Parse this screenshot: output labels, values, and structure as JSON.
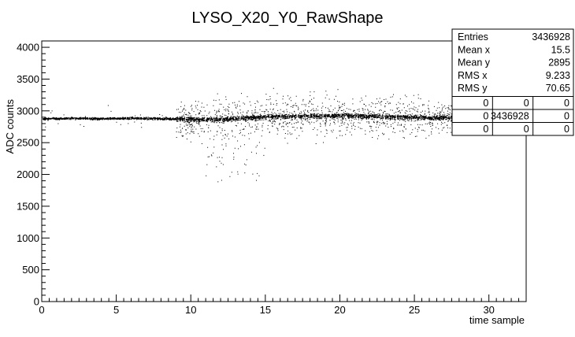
{
  "chart_data": {
    "type": "scatter",
    "title": "LYSO_X20_Y0_RawShape",
    "xlabel": "time sample",
    "ylabel": "ADC counts",
    "xlim": [
      0,
      32.5
    ],
    "ylim": [
      0,
      4100
    ],
    "x_ticks": [
      0,
      5,
      10,
      15,
      20,
      25,
      30
    ],
    "x_tick_labels": [
      "0",
      "5",
      "10",
      "15",
      "20",
      "25",
      "30"
    ],
    "y_ticks": [
      0,
      500,
      1000,
      1500,
      2000,
      2500,
      3000,
      3500,
      4000
    ],
    "y_tick_labels": [
      "0",
      "500",
      "1000",
      "1500",
      "2000",
      "2500",
      "3000",
      "3500",
      "4000"
    ],
    "grid": false,
    "legend": "none",
    "baseline": 2895,
    "series": [
      {
        "description_points": [
          {
            "x": 0,
            "y": 2880
          },
          {
            "x": 2,
            "y": 2890
          },
          {
            "x": 4,
            "y": 2885
          },
          {
            "x": 6,
            "y": 2890
          },
          {
            "x": 8,
            "y": 2885
          },
          {
            "x": 9,
            "y": 2880
          },
          {
            "x": 10,
            "y": 2870
          },
          {
            "x": 12,
            "y": 2870
          },
          {
            "x": 14,
            "y": 2900
          },
          {
            "x": 16,
            "y": 2920
          },
          {
            "x": 18,
            "y": 2920
          },
          {
            "x": 20,
            "y": 2930
          },
          {
            "x": 22,
            "y": 2920
          },
          {
            "x": 24,
            "y": 2910
          },
          {
            "x": 26,
            "y": 2900
          },
          {
            "x": 28,
            "y": 2900
          },
          {
            "x": 30,
            "y": 2900
          },
          {
            "x": 31,
            "y": 2900
          }
        ]
      }
    ],
    "stats_box": {
      "rows": [
        {
          "label": "Entries",
          "value": "3436928"
        },
        {
          "label": "Mean x",
          "value": "15.5"
        },
        {
          "label": "Mean y",
          "value": "2895"
        },
        {
          "label": "RMS x",
          "value": "9.233"
        },
        {
          "label": "RMS y",
          "value": "70.65"
        }
      ],
      "grid": [
        [
          "0",
          "0",
          "0"
        ],
        [
          "0",
          "3436928",
          "0"
        ],
        [
          "0",
          "0",
          "0"
        ]
      ]
    }
  }
}
